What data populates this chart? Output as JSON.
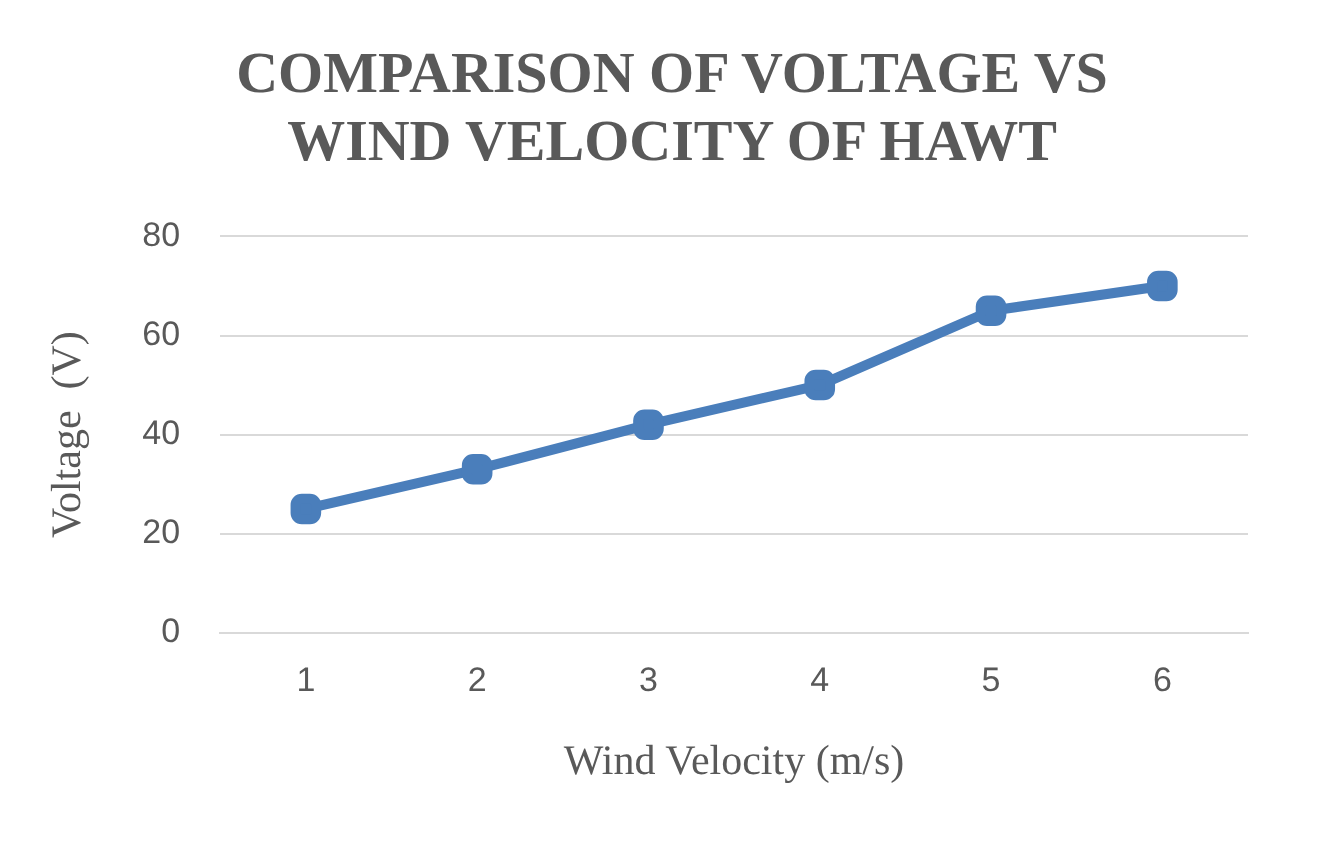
{
  "chart_data": {
    "type": "line",
    "title": "COMPARISON OF VOLTAGE VS WIND VELOCITY OF HAWT",
    "xlabel": "Wind Velocity (m/s)",
    "ylabel": "Voltage  (V)",
    "categories": [
      "1",
      "2",
      "3",
      "4",
      "5",
      "6"
    ],
    "series": [
      {
        "color": "#4a7ebb",
        "values": [
          25,
          33,
          42,
          50,
          65,
          70
        ]
      }
    ],
    "ylim": [
      0,
      80
    ],
    "yticks": [
      0,
      20,
      40,
      60,
      80
    ],
    "grid": "y",
    "marker": "square",
    "line_style": "solid"
  }
}
